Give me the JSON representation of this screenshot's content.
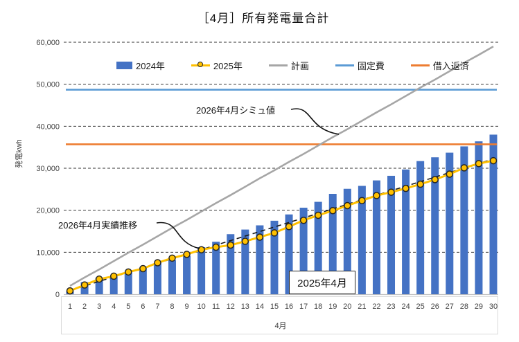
{
  "title": "［4月］所有発電量合計",
  "y_axis": {
    "title": "発電kwh",
    "tick_labels": [
      "0",
      "10,000",
      "20,000",
      "30,000",
      "40,000",
      "50,000",
      "60,000"
    ],
    "tick_values": [
      0,
      10000,
      20000,
      30000,
      40000,
      50000,
      60000
    ]
  },
  "x_axis": {
    "title": "4月",
    "labels": [
      "1",
      "2",
      "3",
      "4",
      "5",
      "6",
      "7",
      "8",
      "9",
      "10",
      "11",
      "12",
      "13",
      "14",
      "15",
      "16",
      "17",
      "18",
      "19",
      "20",
      "21",
      "22",
      "23",
      "24",
      "25",
      "26",
      "27",
      "28",
      "29",
      "30"
    ]
  },
  "legend": {
    "items": [
      {
        "label": "2024年",
        "color": "#4472C4",
        "type": "bar"
      },
      {
        "label": "2025年",
        "color": "#FFC000",
        "type": "line-marker"
      },
      {
        "label": "計画",
        "color": "#A6A6A6",
        "type": "line"
      },
      {
        "label": "固定費",
        "color": "#5B9BD5",
        "type": "line"
      },
      {
        "label": "借入返済",
        "color": "#ED7D31",
        "type": "line"
      }
    ]
  },
  "annotations": {
    "sim_label": "2026年4月シミュ値",
    "actual_label": "2026年4月実績推移",
    "box_label": "2025年4月"
  },
  "colors": {
    "bar": "#4472C4",
    "line_2025": "#FFC000",
    "marker_border": "#262626",
    "plan": "#A6A6A6",
    "fixed_cost": "#5B9BD5",
    "loan": "#ED7D31",
    "trend": "#1a1a1a",
    "grid": "#333333",
    "axis": "#BFBFBF",
    "label_box": "#D9D9D9",
    "tick_text": "#404040"
  },
  "chart_data": {
    "type": "bar",
    "categories": [
      1,
      2,
      3,
      4,
      5,
      6,
      7,
      8,
      9,
      10,
      11,
      12,
      13,
      14,
      15,
      16,
      17,
      18,
      19,
      20,
      21,
      22,
      23,
      24,
      25,
      26,
      27,
      28,
      29,
      30
    ],
    "title": "［4月］所有発電量合計",
    "xlabel": "4月",
    "ylabel": "発電kwh",
    "ylim": [
      0,
      60000
    ],
    "grid": true,
    "legend_position": "top",
    "series": [
      {
        "name": "2024年",
        "type": "bar",
        "values": [
          700,
          2900,
          3900,
          4200,
          5400,
          6300,
          7400,
          8100,
          9100,
          11200,
          12500,
          14300,
          15400,
          16400,
          17500,
          19000,
          20600,
          22000,
          23900,
          25100,
          25800,
          27100,
          28200,
          29700,
          31700,
          32600,
          33700,
          35200,
          36400,
          38000
        ]
      },
      {
        "name": "2025年",
        "type": "line",
        "values": [
          800,
          2200,
          3600,
          4300,
          5300,
          6100,
          7500,
          8600,
          9500,
          10600,
          11200,
          11700,
          12600,
          13600,
          14600,
          16100,
          17600,
          18800,
          19900,
          21100,
          22300,
          23500,
          24300,
          25200,
          26200,
          27300,
          28600,
          30100,
          31100,
          31800
        ]
      },
      {
        "name": "計画",
        "type": "line",
        "values": [
          2000,
          4000,
          5900,
          7900,
          9900,
          11800,
          13800,
          15800,
          17700,
          19700,
          21700,
          23600,
          25600,
          27600,
          29500,
          31500,
          33400,
          35400,
          37400,
          39300,
          41300,
          43300,
          45200,
          47200,
          49200,
          51100,
          53100,
          55100,
          57000,
          59000
        ]
      },
      {
        "name": "固定費",
        "type": "hline",
        "value": 48700
      },
      {
        "name": "借入返済",
        "type": "hline",
        "value": 35700
      },
      {
        "name": "実績トレンド破線",
        "type": "trend-dashed",
        "x_range": [
          1,
          30
        ],
        "value_range": [
          900,
          32200
        ]
      }
    ]
  }
}
